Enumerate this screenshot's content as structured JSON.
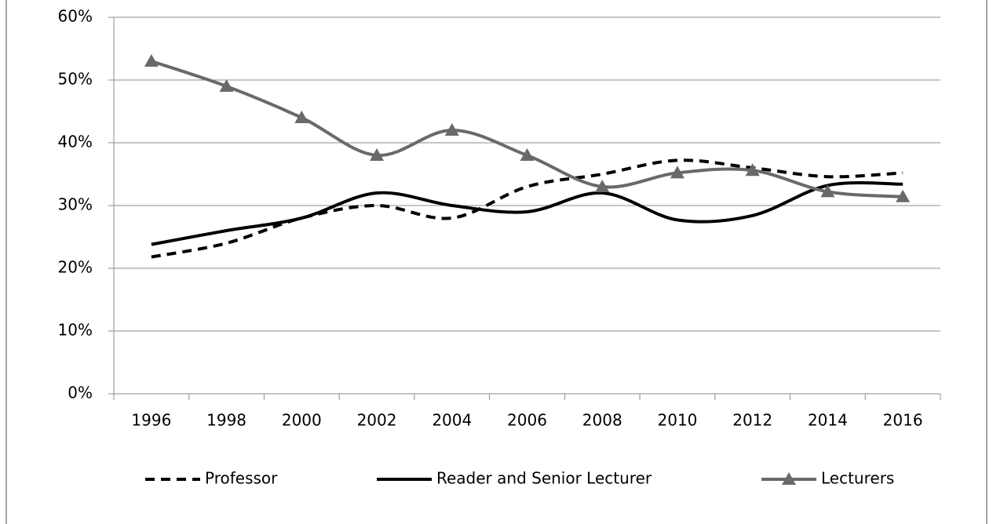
{
  "chart_data": {
    "type": "line",
    "categories": [
      "1996",
      "1998",
      "2000",
      "2002",
      "2004",
      "2006",
      "2008",
      "2010",
      "2012",
      "2014",
      "2016"
    ],
    "series": [
      {
        "name": "Professor",
        "color": "#000000",
        "dash": true,
        "values": [
          21.8,
          24,
          28,
          30,
          28,
          33,
          35,
          37.2,
          36,
          34.6,
          35.2
        ]
      },
      {
        "name": "Reader and Senior Lecturer",
        "color": "#000000",
        "dash": false,
        "values": [
          23.8,
          26,
          28,
          32,
          30,
          29,
          32,
          27.7,
          28.4,
          33.2,
          33.4
        ]
      },
      {
        "name": "Lecturers",
        "color": "#696969",
        "dash": false,
        "marker": "triangle",
        "values": [
          53,
          49,
          44,
          38,
          42,
          38,
          33,
          35.2,
          35.6,
          32.2,
          31.4
        ]
      }
    ],
    "ylim": [
      0,
      60
    ],
    "yticks": [
      {
        "value": 0,
        "label": "0%"
      },
      {
        "value": 10,
        "label": "10%"
      },
      {
        "value": 20,
        "label": "20%"
      },
      {
        "value": 30,
        "label": "30%"
      },
      {
        "value": 40,
        "label": "40%"
      },
      {
        "value": 50,
        "label": "50%"
      },
      {
        "value": 60,
        "label": "60%"
      }
    ],
    "grid": true,
    "legend": "bottom"
  }
}
